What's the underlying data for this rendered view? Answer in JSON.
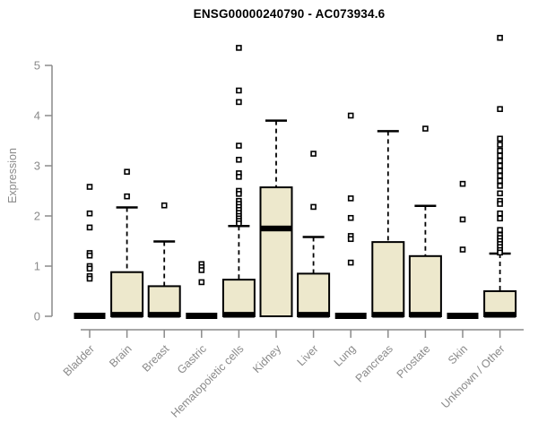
{
  "chart_data": {
    "type": "boxplot",
    "title": "ENSG00000240790 - AC073934.6",
    "ylabel": "Expression",
    "xlabel": "",
    "ylim": [
      0,
      5.6
    ],
    "yticks": [
      0,
      1,
      2,
      3,
      4,
      5
    ],
    "grid": false,
    "legend": "none",
    "colors": {
      "box_fill": "#EDE8CC",
      "box_stroke": "#000000",
      "axis": "#8a8a8a",
      "tick_label": "#8a8a8a",
      "title": "#000000"
    },
    "categories": [
      "Bladder",
      "Brain",
      "Breast",
      "Gastric",
      "Hematopoietic cells",
      "Kidney",
      "Liver",
      "Lung",
      "Pancreas",
      "Prostate",
      "Skin",
      "Unknown / Other"
    ],
    "series": [
      {
        "category": "Bladder",
        "q1": 0,
        "median": 0.02,
        "q3": 0.04,
        "whisker_low": 0,
        "whisker_high": 0.04,
        "collapsed": true,
        "outliers": [
          2.58,
          2.05,
          1.77,
          1.26,
          1.21,
          1.0,
          0.95,
          0.8,
          0.75
        ]
      },
      {
        "category": "Brain",
        "q1": 0,
        "median": 0.03,
        "q3": 0.88,
        "whisker_low": 0,
        "whisker_high": 2.17,
        "collapsed": false,
        "outliers": [
          2.88,
          2.39
        ]
      },
      {
        "category": "Breast",
        "q1": 0,
        "median": 0.03,
        "q3": 0.6,
        "whisker_low": 0,
        "whisker_high": 1.49,
        "collapsed": false,
        "outliers": [
          2.21
        ]
      },
      {
        "category": "Gastric",
        "q1": 0,
        "median": 0.02,
        "q3": 0.04,
        "whisker_low": 0,
        "whisker_high": 0.04,
        "collapsed": true,
        "outliers": [
          1.04,
          0.98,
          0.92,
          0.68
        ]
      },
      {
        "category": "Hematopoietic cells",
        "q1": 0,
        "median": 0.03,
        "q3": 0.73,
        "whisker_low": 0,
        "whisker_high": 1.8,
        "collapsed": false,
        "outliers": [
          5.35,
          4.5,
          4.27,
          3.4,
          3.12,
          2.85,
          2.78,
          2.5,
          2.44,
          2.3,
          2.24,
          2.18,
          2.12,
          2.06,
          2.0,
          1.95,
          1.9,
          1.85
        ]
      },
      {
        "category": "Kidney",
        "q1": 0,
        "median": 1.75,
        "q3": 2.57,
        "whisker_low": 0,
        "whisker_high": 3.9,
        "collapsed": false,
        "outliers": []
      },
      {
        "category": "Liver",
        "q1": 0,
        "median": 0.03,
        "q3": 0.85,
        "whisker_low": 0,
        "whisker_high": 1.58,
        "collapsed": false,
        "outliers": [
          3.24,
          2.18
        ]
      },
      {
        "category": "Lung",
        "q1": 0,
        "median": 0.02,
        "q3": 0.04,
        "whisker_low": 0,
        "whisker_high": 0.04,
        "collapsed": true,
        "outliers": [
          4.0,
          2.35,
          1.96,
          1.6,
          1.54,
          1.07
        ]
      },
      {
        "category": "Pancreas",
        "q1": 0,
        "median": 0.03,
        "q3": 1.48,
        "whisker_low": 0,
        "whisker_high": 3.69,
        "collapsed": false,
        "outliers": []
      },
      {
        "category": "Prostate",
        "q1": 0,
        "median": 0.03,
        "q3": 1.2,
        "whisker_low": 0,
        "whisker_high": 2.2,
        "collapsed": false,
        "outliers": [
          3.74
        ]
      },
      {
        "category": "Skin",
        "q1": 0,
        "median": 0.02,
        "q3": 0.04,
        "whisker_low": 0,
        "whisker_high": 0.04,
        "collapsed": true,
        "outliers": [
          2.64,
          1.93,
          1.33
        ]
      },
      {
        "category": "Unknown / Other",
        "q1": 0,
        "median": 0.03,
        "q3": 0.5,
        "whisker_low": 0,
        "whisker_high": 1.25,
        "collapsed": false,
        "outliers": [
          5.55,
          4.13,
          3.54,
          3.42,
          3.3,
          3.2,
          3.1,
          3.0,
          2.9,
          2.8,
          2.7,
          2.6,
          2.45,
          2.3,
          2.24,
          2.05,
          1.95,
          1.72,
          1.62,
          1.56,
          1.5,
          1.44,
          1.38,
          1.32,
          1.27
        ]
      }
    ]
  }
}
